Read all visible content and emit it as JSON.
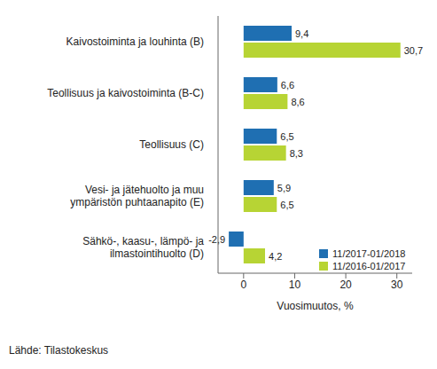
{
  "chart_data": {
    "type": "bar",
    "orientation": "horizontal",
    "categories": [
      "Kaivostoiminta ja louhinta (B)",
      "Teollisuus ja kaivostoiminta (B-C)",
      "Teollisuus (C)",
      "Vesi- ja jätehuolto ja muu ympäristön puhtaanapito (E)",
      "Sähkö-, kaasu-, lämpö- ja ilmastointihuolto (D)"
    ],
    "series": [
      {
        "name": "11/2017-01/2018",
        "color": "#1f6fb2",
        "values": [
          9.4,
          6.6,
          6.5,
          5.9,
          -2.9
        ],
        "value_labels": [
          "9,4",
          "6,6",
          "6,5",
          "5,9",
          "-2,9"
        ]
      },
      {
        "name": "11/2016-01/2017",
        "color": "#b7d434",
        "values": [
          30.7,
          8.6,
          8.3,
          6.5,
          4.2
        ],
        "value_labels": [
          "30,7",
          "8,6",
          "8,3",
          "6,5",
          "4,2"
        ]
      }
    ],
    "xlim": [
      -5,
      33
    ],
    "xticks": [
      0,
      10,
      20,
      30
    ],
    "x_label": "Vuosimuutos, %",
    "annotations": [
      "Lähde: Tilastokeskus"
    ],
    "grid": false,
    "legend": "lower right",
    "data_labels": true
  }
}
